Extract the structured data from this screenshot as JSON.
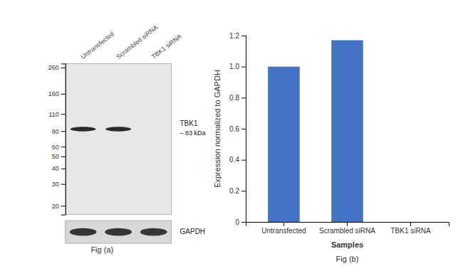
{
  "chart_data": [
    {
      "type": "blot",
      "title": "Fig (a)",
      "categories": [
        "Untransfected",
        "Scrambled siRNA",
        "TBK1  siRNA"
      ],
      "log": "y",
      "ylim": [
        17,
        280
      ],
      "yticks": [
        260,
        160,
        110,
        80,
        60,
        50,
        40,
        30,
        20
      ],
      "series": [
        {
          "name": "TBK1",
          "values": [
            83,
            83,
            null
          ]
        }
      ],
      "annotations": [
        "– 83 kDa",
        "GAPDH"
      ]
    },
    {
      "type": "bar",
      "title": "Fig (b)",
      "xlabel": "Samples",
      "ylabel": "Expression normalized to GAPDH",
      "categories": [
        "Untransfected",
        "Scrambled siRNA",
        "TBK1 siRNA"
      ],
      "values": [
        1.0,
        1.17,
        0.0
      ],
      "color": "#4472C4",
      "ylim": [
        0,
        1.2
      ],
      "yticks": [
        0,
        0.2,
        0.4,
        0.6,
        0.8,
        {
          "value": 1.0,
          "label": "1.0"
        },
        1.2
      ],
      "grid": false
    }
  ]
}
